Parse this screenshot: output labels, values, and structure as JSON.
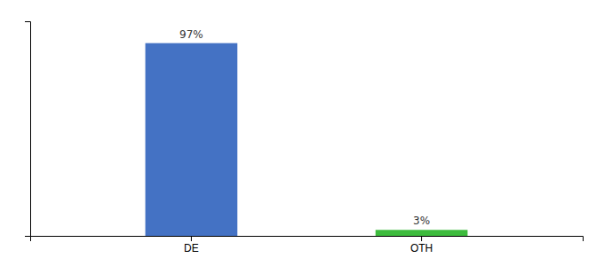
{
  "chart_data": {
    "type": "bar",
    "categories": [
      "DE",
      "OTH"
    ],
    "values": [
      97,
      3
    ],
    "value_labels": [
      "97%",
      "3%"
    ],
    "colors": [
      "#4472c4",
      "#3dbb3d"
    ],
    "ylim": [
      0,
      108
    ],
    "data_labels": true,
    "tick_labels": "x"
  }
}
